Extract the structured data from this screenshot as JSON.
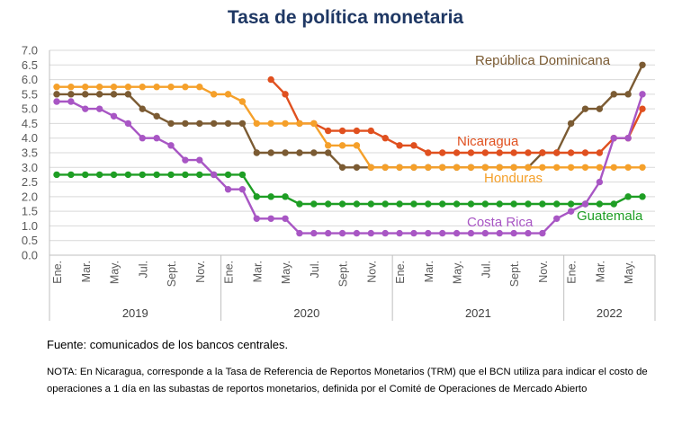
{
  "title": "Tasa de política monetaria",
  "source": "Fuente: comunicados de los bancos centrales.",
  "note": "NOTA: En Nicaragua, corresponde a la Tasa de Referencia de Reportos Monetarios (TRM) que el BCN utiliza para indicar el costo de operaciones a 1 día en las subastas de reportos monetarios, definida por el Comité de Operaciones de Mercado Abierto",
  "chart_data": {
    "type": "line",
    "title": "Tasa de política monetaria",
    "ylim": [
      0,
      7
    ],
    "yticks": [
      "0.0",
      "0.5",
      "1.0",
      "1.5",
      "2.0",
      "2.5",
      "3.0",
      "3.5",
      "4.0",
      "4.5",
      "5.0",
      "5.5",
      "6.0",
      "6.5",
      "7.0"
    ],
    "grid": true,
    "x": [
      "2019-01",
      "2019-02",
      "2019-03",
      "2019-04",
      "2019-05",
      "2019-06",
      "2019-07",
      "2019-08",
      "2019-09",
      "2019-10",
      "2019-11",
      "2019-12",
      "2020-01",
      "2020-02",
      "2020-03",
      "2020-04",
      "2020-05",
      "2020-06",
      "2020-07",
      "2020-08",
      "2020-09",
      "2020-10",
      "2020-11",
      "2020-12",
      "2021-01",
      "2021-02",
      "2021-03",
      "2021-04",
      "2021-05",
      "2021-06",
      "2021-07",
      "2021-08",
      "2021-09",
      "2021-10",
      "2021-11",
      "2021-12",
      "2022-01",
      "2022-02",
      "2022-03",
      "2022-04",
      "2022-05",
      "2022-06"
    ],
    "x_tick_labels": [
      "Ene.",
      "Mar.",
      "May.",
      "Jul.",
      "Sept.",
      "Nov.",
      "Ene.",
      "Mar.",
      "May.",
      "Jul.",
      "Sept.",
      "Nov.",
      "Ene.",
      "Mar.",
      "May.",
      "Jul.",
      "Sept.",
      "Nov.",
      "Ene.",
      "Mar.",
      "May."
    ],
    "years": [
      "2019",
      "2020",
      "2021",
      "2022"
    ],
    "series": [
      {
        "name": "República Dominicana",
        "color": "#7b5b33",
        "values": [
          5.5,
          5.5,
          5.5,
          5.5,
          5.5,
          5.5,
          5.0,
          4.75,
          4.5,
          4.5,
          4.5,
          4.5,
          4.5,
          4.5,
          3.5,
          3.5,
          3.5,
          3.5,
          3.5,
          3.5,
          3.0,
          3.0,
          3.0,
          3.0,
          3.0,
          3.0,
          3.0,
          3.0,
          3.0,
          3.0,
          3.0,
          3.0,
          3.0,
          3.0,
          3.5,
          3.5,
          4.5,
          5.0,
          5.0,
          5.5,
          5.5,
          6.5
        ]
      },
      {
        "name": "Nicaragua",
        "color": "#e0501f",
        "values": [
          null,
          null,
          null,
          null,
          null,
          null,
          null,
          null,
          null,
          null,
          null,
          null,
          null,
          null,
          null,
          6.0,
          5.5,
          4.5,
          4.5,
          4.25,
          4.25,
          4.25,
          4.25,
          4.0,
          3.75,
          3.75,
          3.5,
          3.5,
          3.5,
          3.5,
          3.5,
          3.5,
          3.5,
          3.5,
          3.5,
          3.5,
          3.5,
          3.5,
          3.5,
          4.0,
          4.0,
          5.0
        ]
      },
      {
        "name": "Honduras",
        "color": "#f5a02a",
        "values": [
          5.75,
          5.75,
          5.75,
          5.75,
          5.75,
          5.75,
          5.75,
          5.75,
          5.75,
          5.75,
          5.75,
          5.5,
          5.5,
          5.25,
          4.5,
          4.5,
          4.5,
          4.5,
          4.5,
          3.75,
          3.75,
          3.75,
          3.0,
          3.0,
          3.0,
          3.0,
          3.0,
          3.0,
          3.0,
          3.0,
          3.0,
          3.0,
          3.0,
          3.0,
          3.0,
          3.0,
          3.0,
          3.0,
          3.0,
          3.0,
          3.0,
          3.0
        ]
      },
      {
        "name": "Guatemala",
        "color": "#1e9e24",
        "values": [
          2.75,
          2.75,
          2.75,
          2.75,
          2.75,
          2.75,
          2.75,
          2.75,
          2.75,
          2.75,
          2.75,
          2.75,
          2.75,
          2.75,
          2.0,
          2.0,
          2.0,
          1.75,
          1.75,
          1.75,
          1.75,
          1.75,
          1.75,
          1.75,
          1.75,
          1.75,
          1.75,
          1.75,
          1.75,
          1.75,
          1.75,
          1.75,
          1.75,
          1.75,
          1.75,
          1.75,
          1.75,
          1.75,
          1.75,
          1.75,
          2.0,
          2.0
        ]
      },
      {
        "name": "Costa Rica",
        "color": "#a856c4",
        "values": [
          5.25,
          5.25,
          5.0,
          5.0,
          4.75,
          4.5,
          4.0,
          4.0,
          3.75,
          3.25,
          3.25,
          2.75,
          2.25,
          2.25,
          1.25,
          1.25,
          1.25,
          0.75,
          0.75,
          0.75,
          0.75,
          0.75,
          0.75,
          0.75,
          0.75,
          0.75,
          0.75,
          0.75,
          0.75,
          0.75,
          0.75,
          0.75,
          0.75,
          0.75,
          0.75,
          1.25,
          1.5,
          1.75,
          2.5,
          4.0,
          4.0,
          5.5
        ]
      }
    ]
  }
}
